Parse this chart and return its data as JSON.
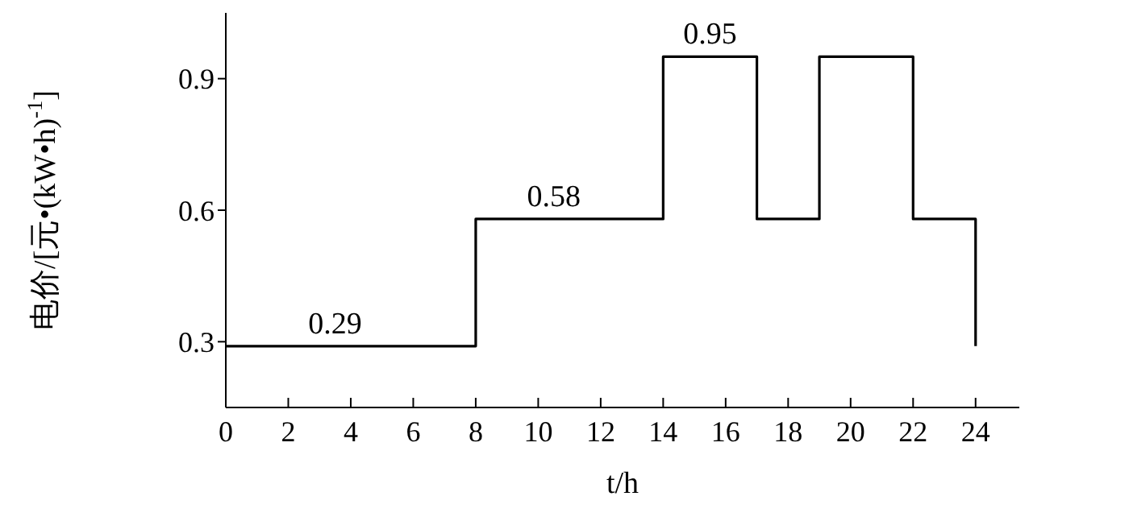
{
  "chart_data": {
    "type": "step",
    "xlabel": "t/h",
    "ylabel": "电价/[元•(kW•h)$^{-1}$]",
    "x": [
      0,
      8,
      14,
      17,
      19,
      22,
      24
    ],
    "series": [
      {
        "color": "#000000",
        "values": [
          0.29,
          0.58,
          0.95,
          0.58,
          0.95,
          0.58,
          0.29
        ]
      }
    ],
    "xlim": [
      0,
      25.4
    ],
    "xticks": [
      0,
      2,
      4,
      6,
      8,
      10,
      12,
      14,
      16,
      18,
      20,
      22,
      24
    ],
    "ylim": [
      0.15,
      1.05
    ],
    "yticks": [
      0.3,
      0.6,
      0.9
    ],
    "annotations": [
      {
        "text": "0.29",
        "x": 3.5,
        "y": 0.29
      },
      {
        "text": "0.58",
        "x": 10.5,
        "y": 0.58
      },
      {
        "text": "0.95",
        "x": 15.5,
        "y": 0.95
      }
    ]
  }
}
